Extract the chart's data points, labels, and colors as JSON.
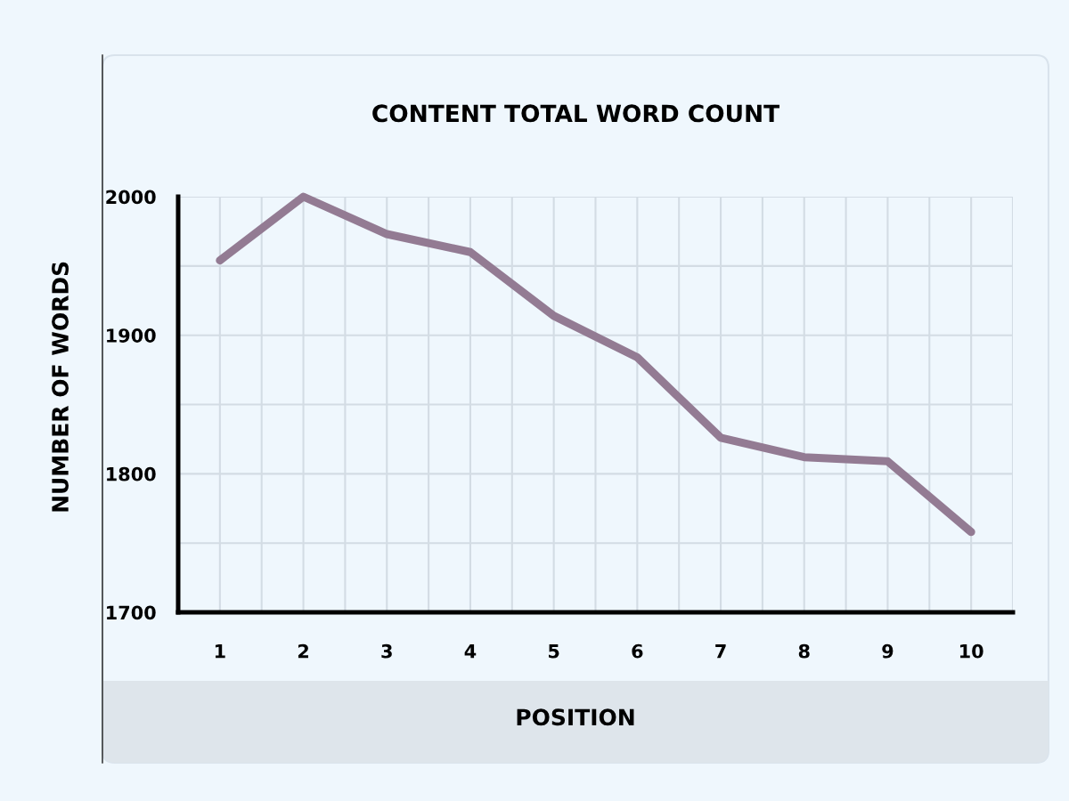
{
  "chart_data": {
    "type": "line",
    "title": "CONTENT TOTAL WORD COUNT",
    "xlabel": "POSITION",
    "ylabel": "NUMBER OF WORDS",
    "x": [
      1,
      2,
      3,
      4,
      5,
      6,
      7,
      8,
      9,
      10
    ],
    "series": [
      {
        "values": [
          1954,
          2000,
          1973,
          1960,
          1914,
          1884,
          1826,
          1812,
          1809,
          1758
        ],
        "color": "#937b93"
      }
    ],
    "xlim": [
      0.5,
      10.5
    ],
    "xticks": [
      {
        "value": 0.5,
        "label": null
      },
      1,
      {
        "value": 1.5,
        "label": null
      },
      2,
      {
        "value": 2.5,
        "label": null
      },
      3,
      {
        "value": 3.5,
        "label": null
      },
      4,
      {
        "value": 4.5,
        "label": null
      },
      5,
      {
        "value": 5.5,
        "label": null
      },
      6,
      {
        "value": 6.5,
        "label": null
      },
      7,
      {
        "value": 7.5,
        "label": null
      },
      8,
      {
        "value": 8.5,
        "label": null
      },
      9,
      {
        "value": 9.5,
        "label": null
      },
      10,
      {
        "value": 10.5,
        "label": null
      }
    ],
    "ylim": [
      1700,
      2000
    ],
    "yticks": [
      1700,
      {
        "value": 1750,
        "label": null
      },
      1800,
      {
        "value": 1850,
        "label": null
      },
      1900,
      {
        "value": 1950,
        "label": null
      },
      2000
    ],
    "grid": true,
    "line_style": "solid"
  }
}
